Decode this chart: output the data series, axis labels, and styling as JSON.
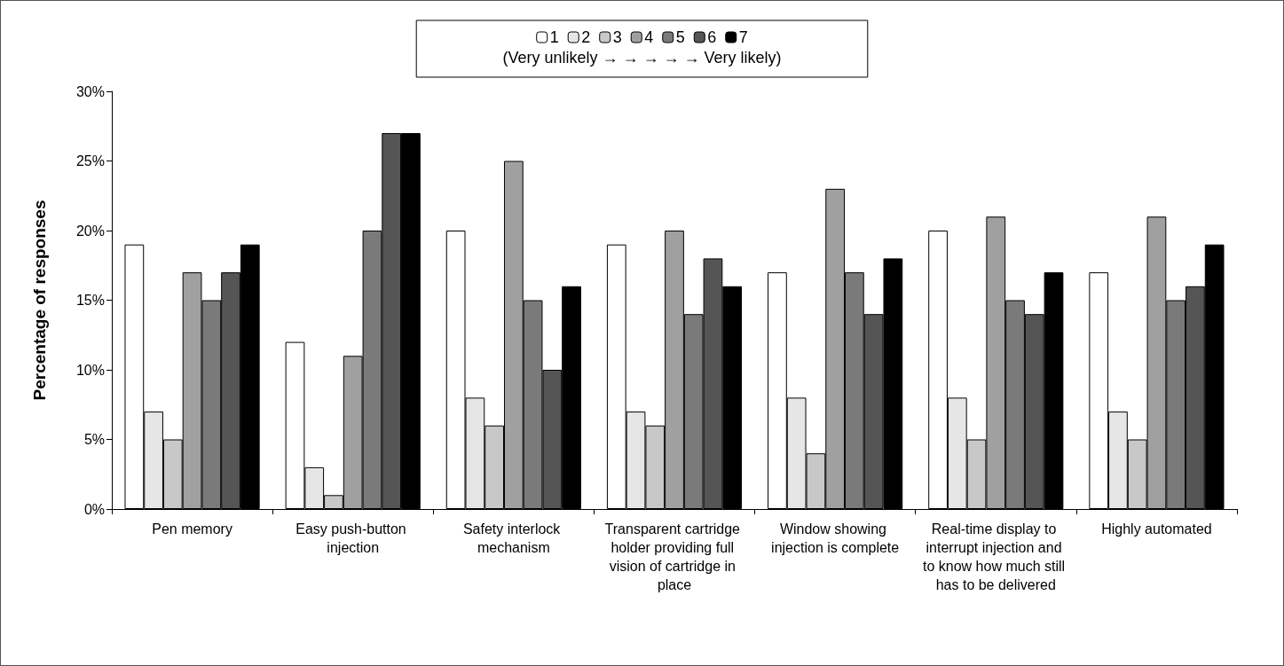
{
  "chart_data": {
    "type": "bar",
    "ylabel": "Percentage of responses",
    "legend_title": "(Very unlikely → → → → → Very likely)",
    "categories": [
      "Pen memory",
      "Easy push-button injection",
      "Safety interlock mechanism",
      "Transparent cartridge holder providing full vision of cartridge in place",
      "Window showing injection is complete",
      "Real-time display to interrupt injection and to know how much still has to be delivered",
      "Highly automated"
    ],
    "series": [
      {
        "name": "1",
        "color": "#ffffff",
        "values": [
          19,
          12,
          20,
          19,
          17,
          20,
          17
        ]
      },
      {
        "name": "2",
        "color": "#e6e6e6",
        "values": [
          7,
          3,
          8,
          7,
          8,
          8,
          7
        ]
      },
      {
        "name": "3",
        "color": "#c8c8c8",
        "values": [
          5,
          1,
          6,
          6,
          4,
          5,
          5
        ]
      },
      {
        "name": "4",
        "color": "#a0a0a0",
        "values": [
          17,
          11,
          25,
          20,
          23,
          21,
          21
        ]
      },
      {
        "name": "5",
        "color": "#7a7a7a",
        "values": [
          15,
          20,
          15,
          14,
          17,
          15,
          15
        ]
      },
      {
        "name": "6",
        "color": "#555555",
        "values": [
          17,
          27,
          10,
          18,
          14,
          14,
          16
        ]
      },
      {
        "name": "7",
        "color": "#000000",
        "values": [
          19,
          27,
          16,
          16,
          18,
          17,
          19
        ]
      }
    ],
    "ylim": [
      0,
      30
    ],
    "yticks": [
      {
        "value": 0,
        "label": "0%"
      },
      {
        "value": 5,
        "label": "5%"
      },
      {
        "value": 10,
        "label": "10%"
      },
      {
        "value": 15,
        "label": "15%"
      },
      {
        "value": 20,
        "label": "20%"
      },
      {
        "value": 25,
        "label": "25%"
      },
      {
        "value": 30,
        "label": "30%"
      }
    ],
    "grid": false,
    "legend": "top"
  }
}
